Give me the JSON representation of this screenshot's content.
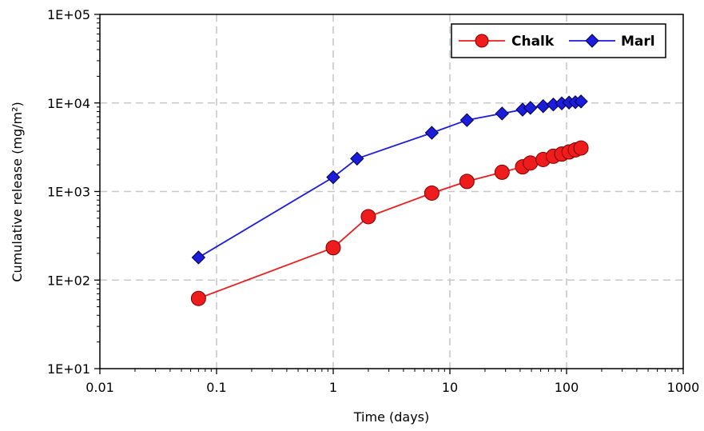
{
  "chart_data": {
    "type": "line",
    "xlabel": "Time (days)",
    "ylabel": "Cumulative release (mg/m²)",
    "x_scale": "log",
    "y_scale": "log",
    "xlim": [
      0.01,
      1000
    ],
    "ylim": [
      10,
      100000
    ],
    "x_tick_labels": [
      "0.01",
      "0.1",
      "1",
      "10",
      "100",
      "1000"
    ],
    "y_tick_labels": [
      "1E+01",
      "1E+02",
      "1E+03",
      "1E+04",
      "1E+05"
    ],
    "grid": true,
    "legend_position": "top-right",
    "series": [
      {
        "name": "Chalk",
        "color": "#ee1c1c",
        "marker": "circle",
        "x": [
          0.07,
          1,
          2,
          7,
          14,
          28,
          42,
          49,
          63,
          77,
          91,
          105,
          119,
          133
        ],
        "y": [
          62,
          232,
          520,
          960,
          1300,
          1650,
          1900,
          2100,
          2300,
          2500,
          2650,
          2800,
          2950,
          3100
        ]
      },
      {
        "name": "Marl",
        "color": "#1c1cdc",
        "marker": "diamond",
        "x": [
          0.07,
          1,
          1.6,
          7,
          14,
          28,
          42,
          49,
          63,
          77,
          91,
          105,
          119,
          133
        ],
        "y": [
          180,
          1450,
          2350,
          4600,
          6400,
          7600,
          8400,
          8800,
          9200,
          9600,
          9900,
          10100,
          10200,
          10400
        ]
      }
    ]
  }
}
